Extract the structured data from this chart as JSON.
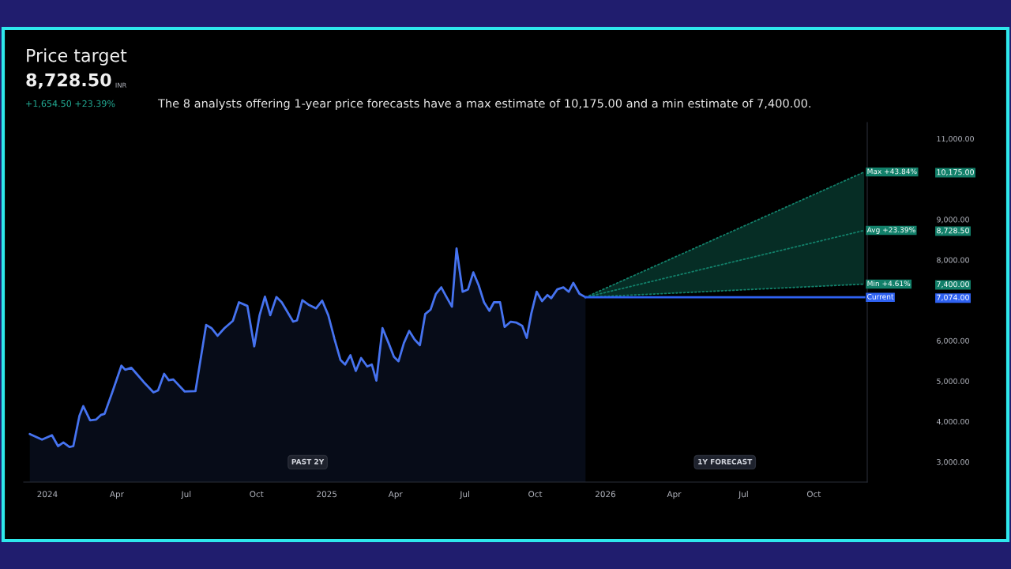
{
  "chart_data": {
    "type": "line",
    "title": "Price target",
    "subtitle": "The 8 analysts offering 1-year price forecasts have a max estimate of 10,175.00 and a min estimate of 7,400.00.",
    "annotations": [
      "8,728.50",
      "INR",
      "+1,654.50 +23.39%",
      "PAST 2Y",
      "1Y FORECAST"
    ],
    "xlim": [
      "2023-12-01",
      "2026-12-10"
    ],
    "xticks": [
      {
        "value": "2024-01-01",
        "label": "2024"
      },
      {
        "value": "2024-04-01",
        "label": "Apr"
      },
      {
        "value": "2024-07-01",
        "label": "Jul"
      },
      {
        "value": "2024-10-01",
        "label": "Oct"
      },
      {
        "value": "2025-01-01",
        "label": "2025"
      },
      {
        "value": "2025-04-01",
        "label": "Apr"
      },
      {
        "value": "2025-07-01",
        "label": "Jul"
      },
      {
        "value": "2025-10-01",
        "label": "Oct"
      },
      {
        "value": "2026-01-01",
        "label": "2026"
      },
      {
        "value": "2026-04-01",
        "label": "Apr"
      },
      {
        "value": "2026-07-01",
        "label": "Jul"
      },
      {
        "value": "2026-10-01",
        "label": "Oct"
      }
    ],
    "ylim": [
      2500,
      11400
    ],
    "yticks": [
      {
        "value": 3000,
        "label": "3,000.00"
      },
      {
        "value": 4000,
        "label": "4,000.00"
      },
      {
        "value": 5000,
        "label": "5,000.00"
      },
      {
        "value": 6000,
        "label": "6,000.00"
      },
      {
        "value": 7074,
        "label": "7,074.00"
      },
      {
        "value": 7400,
        "label": "7,400.00"
      },
      {
        "value": 8000,
        "label": "8,000.00"
      },
      {
        "value": 8728.5,
        "label": "8,728.50"
      },
      {
        "value": 9000,
        "label": "9,000.00"
      },
      {
        "value": 10175,
        "label": "10,175.00"
      },
      {
        "value": 11000,
        "label": "11,000.00"
      }
    ],
    "series": [
      {
        "type": "area",
        "color": "#4673f0",
        "x": [
          "2023-12-09",
          "2023-12-25",
          "2024-01-07",
          "2024-01-15",
          "2024-01-22",
          "2024-01-30",
          "2024-02-04",
          "2024-02-12",
          "2024-02-17",
          "2024-02-26",
          "2024-03-05",
          "2024-03-11",
          "2024-03-16",
          "2024-03-26",
          "2024-04-07",
          "2024-04-12",
          "2024-04-20",
          "2024-04-26",
          "2024-05-06",
          "2024-05-19",
          "2024-05-25",
          "2024-06-02",
          "2024-06-08",
          "2024-06-14",
          "2024-06-29",
          "2024-07-13",
          "2024-07-27",
          "2024-08-03",
          "2024-08-11",
          "2024-08-20",
          "2024-08-31",
          "2024-09-08",
          "2024-09-19",
          "2024-09-28",
          "2024-10-05",
          "2024-10-12",
          "2024-10-19",
          "2024-10-27",
          "2024-11-03",
          "2024-11-18",
          "2024-11-23",
          "2024-11-30",
          "2024-12-09",
          "2024-12-18",
          "2024-12-26",
          "2025-01-03",
          "2025-01-11",
          "2025-01-19",
          "2025-01-25",
          "2025-02-01",
          "2025-02-08",
          "2025-02-15",
          "2025-02-23",
          "2025-03-01",
          "2025-03-07",
          "2025-03-15",
          "2025-03-23",
          "2025-03-30",
          "2025-04-05",
          "2025-04-12",
          "2025-04-19",
          "2025-04-26",
          "2025-05-03",
          "2025-05-10",
          "2025-05-17",
          "2025-05-24",
          "2025-05-31",
          "2025-06-06",
          "2025-06-14",
          "2025-06-20",
          "2025-06-28",
          "2025-07-05",
          "2025-07-12",
          "2025-07-19",
          "2025-07-26",
          "2025-08-02",
          "2025-08-08",
          "2025-08-16",
          "2025-08-22",
          "2025-08-30",
          "2025-09-06",
          "2025-09-14",
          "2025-09-20",
          "2025-09-26",
          "2025-10-03",
          "2025-10-10",
          "2025-10-17",
          "2025-10-22",
          "2025-10-30",
          "2025-11-07",
          "2025-11-14",
          "2025-11-20",
          "2025-11-28",
          "2025-12-06"
        ],
        "values": [
          3690,
          3550,
          3660,
          3390,
          3480,
          3370,
          3390,
          4140,
          4380,
          4030,
          4050,
          4160,
          4190,
          4720,
          5380,
          5280,
          5330,
          5200,
          4980,
          4720,
          4770,
          5180,
          5020,
          5040,
          4740,
          4750,
          6390,
          6310,
          6120,
          6310,
          6490,
          6950,
          6860,
          5860,
          6630,
          7090,
          6630,
          7080,
          6950,
          6470,
          6500,
          7000,
          6880,
          6800,
          6990,
          6630,
          6050,
          5520,
          5410,
          5640,
          5250,
          5570,
          5360,
          5410,
          5010,
          6310,
          5940,
          5600,
          5490,
          5940,
          6240,
          6030,
          5890,
          6660,
          6770,
          7160,
          7320,
          7110,
          6840,
          8280,
          7210,
          7270,
          7690,
          7370,
          6950,
          6740,
          6950,
          6950,
          6340,
          6470,
          6450,
          6370,
          6070,
          6680,
          7210,
          6980,
          7130,
          7050,
          7270,
          7320,
          7210,
          7430,
          7160,
          7074
        ]
      },
      {
        "name": "Current",
        "color": "#2f62f2",
        "line_style": "solid",
        "x": [
          "2025-12-06",
          "2026-12-06"
        ],
        "values": [
          7074,
          7074
        ]
      },
      {
        "name": "Min +4.61%",
        "color": "#12806a",
        "line_style": "dotted",
        "x": [
          "2025-12-06",
          "2026-12-06"
        ],
        "values": [
          7074,
          7400
        ]
      },
      {
        "name": "Avg +23.39%",
        "color": "#12806a",
        "line_style": "dotted",
        "x": [
          "2025-12-06",
          "2026-12-06"
        ],
        "values": [
          7074,
          8728.5
        ],
        "lower": [
          7074,
          7400
        ],
        "upper": [
          7074,
          10175
        ]
      },
      {
        "name": "Max +43.84%",
        "color": "#12806a",
        "line_style": "dotted",
        "x": [
          "2025-12-06",
          "2026-12-06"
        ],
        "values": [
          7074,
          10175
        ]
      }
    ]
  }
}
